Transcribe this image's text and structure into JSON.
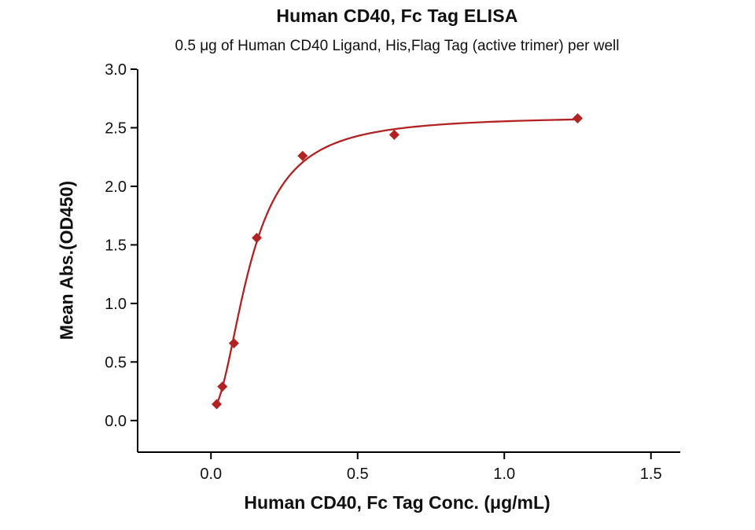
{
  "chart_data": {
    "type": "scatter",
    "title": "Human CD40, Fc Tag ELISA",
    "subtitle": "0.5 μg of Human CD40 Ligand, His,Flag Tag (active trimer) per well",
    "xlabel": "Human CD40, Fc Tag Conc. (μg/mL)",
    "ylabel": "Mean Abs.(OD450)",
    "xlim": [
      -0.25,
      1.6
    ],
    "ylim": [
      -0.27,
      3.0
    ],
    "xticks": [
      0.0,
      0.5,
      1.0,
      1.5
    ],
    "yticks": [
      0.0,
      0.5,
      1.0,
      1.5,
      2.0,
      2.5,
      3.0
    ],
    "tick_decimals": 1,
    "grid": false,
    "legend": false,
    "axis_color": "#000000",
    "text_color": "#111111",
    "series": [
      {
        "name": "Human CD40, Fc Tag",
        "x": [
          0.0195,
          0.0391,
          0.0781,
          0.1563,
          0.3125,
          0.625,
          1.25
        ],
        "y": [
          0.14,
          0.29,
          0.66,
          1.56,
          2.26,
          2.44,
          2.58
        ],
        "marker": "diamond",
        "color": "#b22222"
      }
    ],
    "fit_curve": {
      "model": "4PL",
      "bottom": 0.09,
      "top": 2.6,
      "ec50": 0.135,
      "hill": 2.0,
      "x_start": 0.0195,
      "x_end": 1.25,
      "color": "#b22222"
    }
  }
}
